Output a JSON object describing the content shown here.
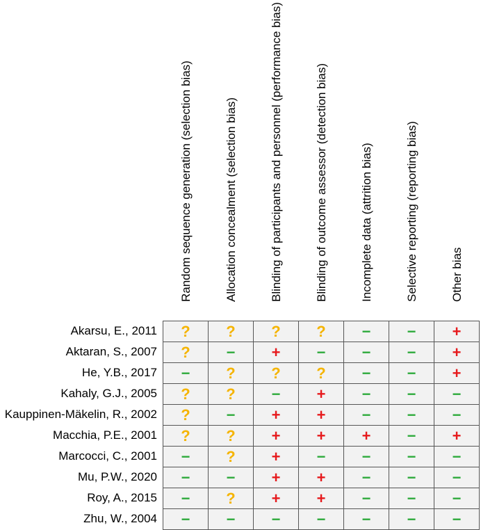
{
  "columns": [
    "Random sequence generation (selection bias)",
    "Allocation concealment (selection bias)",
    "Blinding of participants and personnel (performance bias)",
    "Blinding of outcome assessor (detection bias)",
    "Incomplete data (attrition bias)",
    "Selective reporting (reporting bias)",
    "Other bias"
  ],
  "rows": [
    "Akarsu, E., 2011",
    "Aktaran, S., 2007",
    "He, Y.B., 2017",
    "Kahaly, G.J., 2005",
    "Kauppinen-Mäkelin, R., 2002",
    "Macchia, P.E., 2001",
    "Marcocci, C., 2001",
    "Mu, P.W., 2020",
    "Roy, A., 2015",
    "Zhu, W., 2004"
  ],
  "symbols": {
    "unclear": "?",
    "low": "−",
    "high": "+"
  },
  "colors": {
    "unclear": "#f5b400",
    "low": "#2eaa3c",
    "high": "#e6191c"
  },
  "matrix": [
    [
      "unclear",
      "unclear",
      "unclear",
      "unclear",
      "low",
      "low",
      "high"
    ],
    [
      "unclear",
      "low",
      "high",
      "low",
      "low",
      "low",
      "high"
    ],
    [
      "low",
      "unclear",
      "unclear",
      "unclear",
      "low",
      "low",
      "high"
    ],
    [
      "unclear",
      "unclear",
      "low",
      "high",
      "low",
      "low",
      "low"
    ],
    [
      "unclear",
      "low",
      "high",
      "high",
      "low",
      "low",
      "low"
    ],
    [
      "unclear",
      "unclear",
      "high",
      "high",
      "high",
      "low",
      "high"
    ],
    [
      "low",
      "unclear",
      "high",
      "low",
      "low",
      "low",
      "low"
    ],
    [
      "low",
      "low",
      "high",
      "high",
      "low",
      "low",
      "low"
    ],
    [
      "low",
      "unclear",
      "high",
      "high",
      "low",
      "low",
      "low"
    ],
    [
      "low",
      "low",
      "low",
      "low",
      "low",
      "low",
      "low"
    ]
  ]
}
